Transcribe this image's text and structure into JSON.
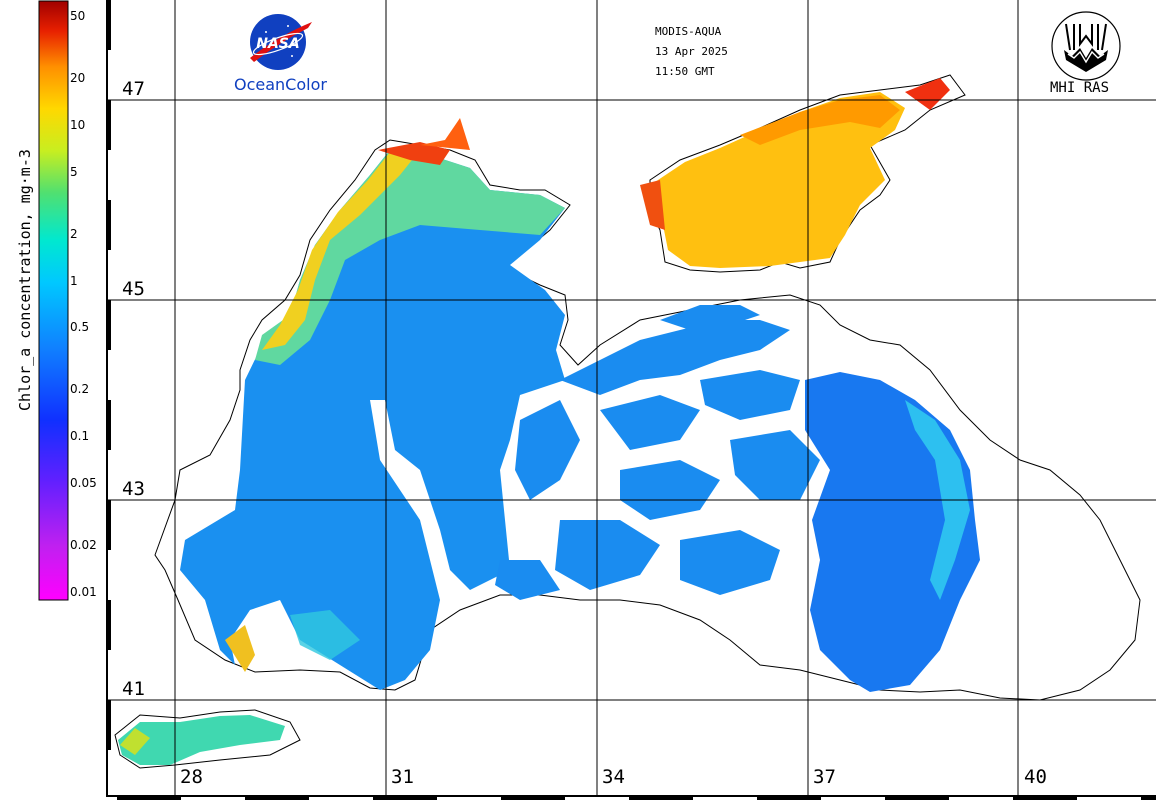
{
  "header": {
    "sensor": "MODIS-AQUA",
    "date": "13 Apr 2025",
    "time": "11:50 GMT"
  },
  "logos": {
    "nasa": {
      "word": "NASA",
      "caption": "OceanColor"
    },
    "mhi": {
      "caption": "MHI RAS"
    }
  },
  "colorbar": {
    "title": "Chlor_a concentration, mg·m-3",
    "ticks": [
      "50",
      "20",
      "10",
      "5",
      "2",
      "1",
      "0.5",
      "0.2",
      "0.1",
      "0.05",
      "0.02",
      "0.01"
    ],
    "scale": "log",
    "range": [
      0.01,
      50
    ],
    "colors": [
      "#ff00ff",
      "#8a2be2",
      "#2030ff",
      "#00a0ff",
      "#00e0e0",
      "#40e080",
      "#d0ee20",
      "#ffd000",
      "#ff8000",
      "#e02000",
      "#a00000"
    ]
  },
  "map": {
    "lat_labels": [
      "47",
      "45",
      "43",
      "41"
    ],
    "lon_labels": [
      "28",
      "31",
      "34",
      "37",
      "40"
    ],
    "land_color": "#ffffff",
    "coast_color": "#000000"
  }
}
